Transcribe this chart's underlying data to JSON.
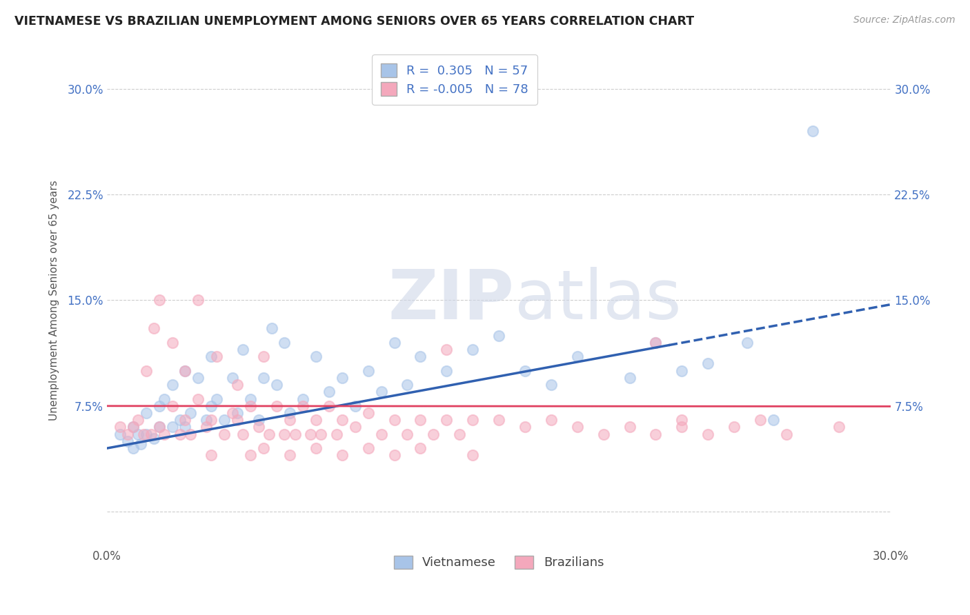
{
  "title": "VIETNAMESE VS BRAZILIAN UNEMPLOYMENT AMONG SENIORS OVER 65 YEARS CORRELATION CHART",
  "source": "Source: ZipAtlas.com",
  "ylabel": "Unemployment Among Seniors over 65 years",
  "xlim": [
    0.0,
    0.3
  ],
  "ylim": [
    -0.025,
    0.325
  ],
  "xticks": [
    0.0,
    0.05,
    0.1,
    0.15,
    0.2,
    0.25,
    0.3
  ],
  "xticklabels": [
    "0.0%",
    "",
    "",
    "",
    "",
    "",
    "30.0%"
  ],
  "yticks": [
    0.0,
    0.075,
    0.15,
    0.225,
    0.3
  ],
  "yticklabels": [
    "",
    "7.5%",
    "15.0%",
    "22.5%",
    "30.0%"
  ],
  "vietnamese_color": "#a8c4e8",
  "brazilians_color": "#f4a8bc",
  "viet_line_color": "#3060b0",
  "braz_line_color": "#e04060",
  "viet_R": 0.305,
  "viet_N": 57,
  "braz_R": -0.005,
  "braz_N": 78,
  "grid_color": "#cccccc",
  "background_color": "#ffffff",
  "watermark_zip": "ZIP",
  "watermark_atlas": "atlas",
  "legend_color": "#4472c4",
  "viet_line_intercept": 0.045,
  "viet_line_slope": 0.34,
  "braz_line_intercept": 0.075,
  "braz_line_slope": -0.001,
  "viet_scatter_x": [
    0.005,
    0.008,
    0.01,
    0.01,
    0.012,
    0.013,
    0.015,
    0.015,
    0.018,
    0.02,
    0.02,
    0.022,
    0.025,
    0.025,
    0.028,
    0.03,
    0.03,
    0.032,
    0.035,
    0.038,
    0.04,
    0.04,
    0.042,
    0.045,
    0.048,
    0.05,
    0.052,
    0.055,
    0.058,
    0.06,
    0.063,
    0.065,
    0.068,
    0.07,
    0.075,
    0.08,
    0.085,
    0.09,
    0.095,
    0.1,
    0.105,
    0.11,
    0.115,
    0.12,
    0.13,
    0.14,
    0.15,
    0.16,
    0.17,
    0.18,
    0.2,
    0.21,
    0.22,
    0.23,
    0.245,
    0.255,
    0.27
  ],
  "viet_scatter_y": [
    0.055,
    0.05,
    0.045,
    0.06,
    0.055,
    0.048,
    0.055,
    0.07,
    0.052,
    0.06,
    0.075,
    0.08,
    0.06,
    0.09,
    0.065,
    0.06,
    0.1,
    0.07,
    0.095,
    0.065,
    0.075,
    0.11,
    0.08,
    0.065,
    0.095,
    0.07,
    0.115,
    0.08,
    0.065,
    0.095,
    0.13,
    0.09,
    0.12,
    0.07,
    0.08,
    0.11,
    0.085,
    0.095,
    0.075,
    0.1,
    0.085,
    0.12,
    0.09,
    0.11,
    0.1,
    0.115,
    0.125,
    0.1,
    0.09,
    0.11,
    0.095,
    0.12,
    0.1,
    0.105,
    0.12,
    0.065,
    0.27
  ],
  "braz_scatter_x": [
    0.005,
    0.008,
    0.01,
    0.012,
    0.014,
    0.015,
    0.017,
    0.018,
    0.02,
    0.02,
    0.022,
    0.025,
    0.025,
    0.028,
    0.03,
    0.03,
    0.032,
    0.035,
    0.035,
    0.038,
    0.04,
    0.042,
    0.045,
    0.048,
    0.05,
    0.05,
    0.052,
    0.055,
    0.058,
    0.06,
    0.062,
    0.065,
    0.068,
    0.07,
    0.072,
    0.075,
    0.078,
    0.08,
    0.082,
    0.085,
    0.088,
    0.09,
    0.095,
    0.1,
    0.105,
    0.11,
    0.115,
    0.12,
    0.125,
    0.13,
    0.135,
    0.14,
    0.15,
    0.16,
    0.17,
    0.18,
    0.19,
    0.2,
    0.21,
    0.22,
    0.23,
    0.24,
    0.25,
    0.26,
    0.28,
    0.06,
    0.08,
    0.1,
    0.12,
    0.14,
    0.04,
    0.055,
    0.07,
    0.09,
    0.11,
    0.13,
    0.21,
    0.22
  ],
  "braz_scatter_y": [
    0.06,
    0.055,
    0.06,
    0.065,
    0.055,
    0.1,
    0.055,
    0.13,
    0.06,
    0.15,
    0.055,
    0.075,
    0.12,
    0.055,
    0.065,
    0.1,
    0.055,
    0.08,
    0.15,
    0.06,
    0.065,
    0.11,
    0.055,
    0.07,
    0.065,
    0.09,
    0.055,
    0.075,
    0.06,
    0.11,
    0.055,
    0.075,
    0.055,
    0.065,
    0.055,
    0.075,
    0.055,
    0.065,
    0.055,
    0.075,
    0.055,
    0.065,
    0.06,
    0.07,
    0.055,
    0.065,
    0.055,
    0.065,
    0.055,
    0.065,
    0.055,
    0.065,
    0.065,
    0.06,
    0.065,
    0.06,
    0.055,
    0.06,
    0.055,
    0.065,
    0.055,
    0.06,
    0.065,
    0.055,
    0.06,
    0.045,
    0.045,
    0.045,
    0.045,
    0.04,
    0.04,
    0.04,
    0.04,
    0.04,
    0.04,
    0.115,
    0.12,
    0.06
  ]
}
